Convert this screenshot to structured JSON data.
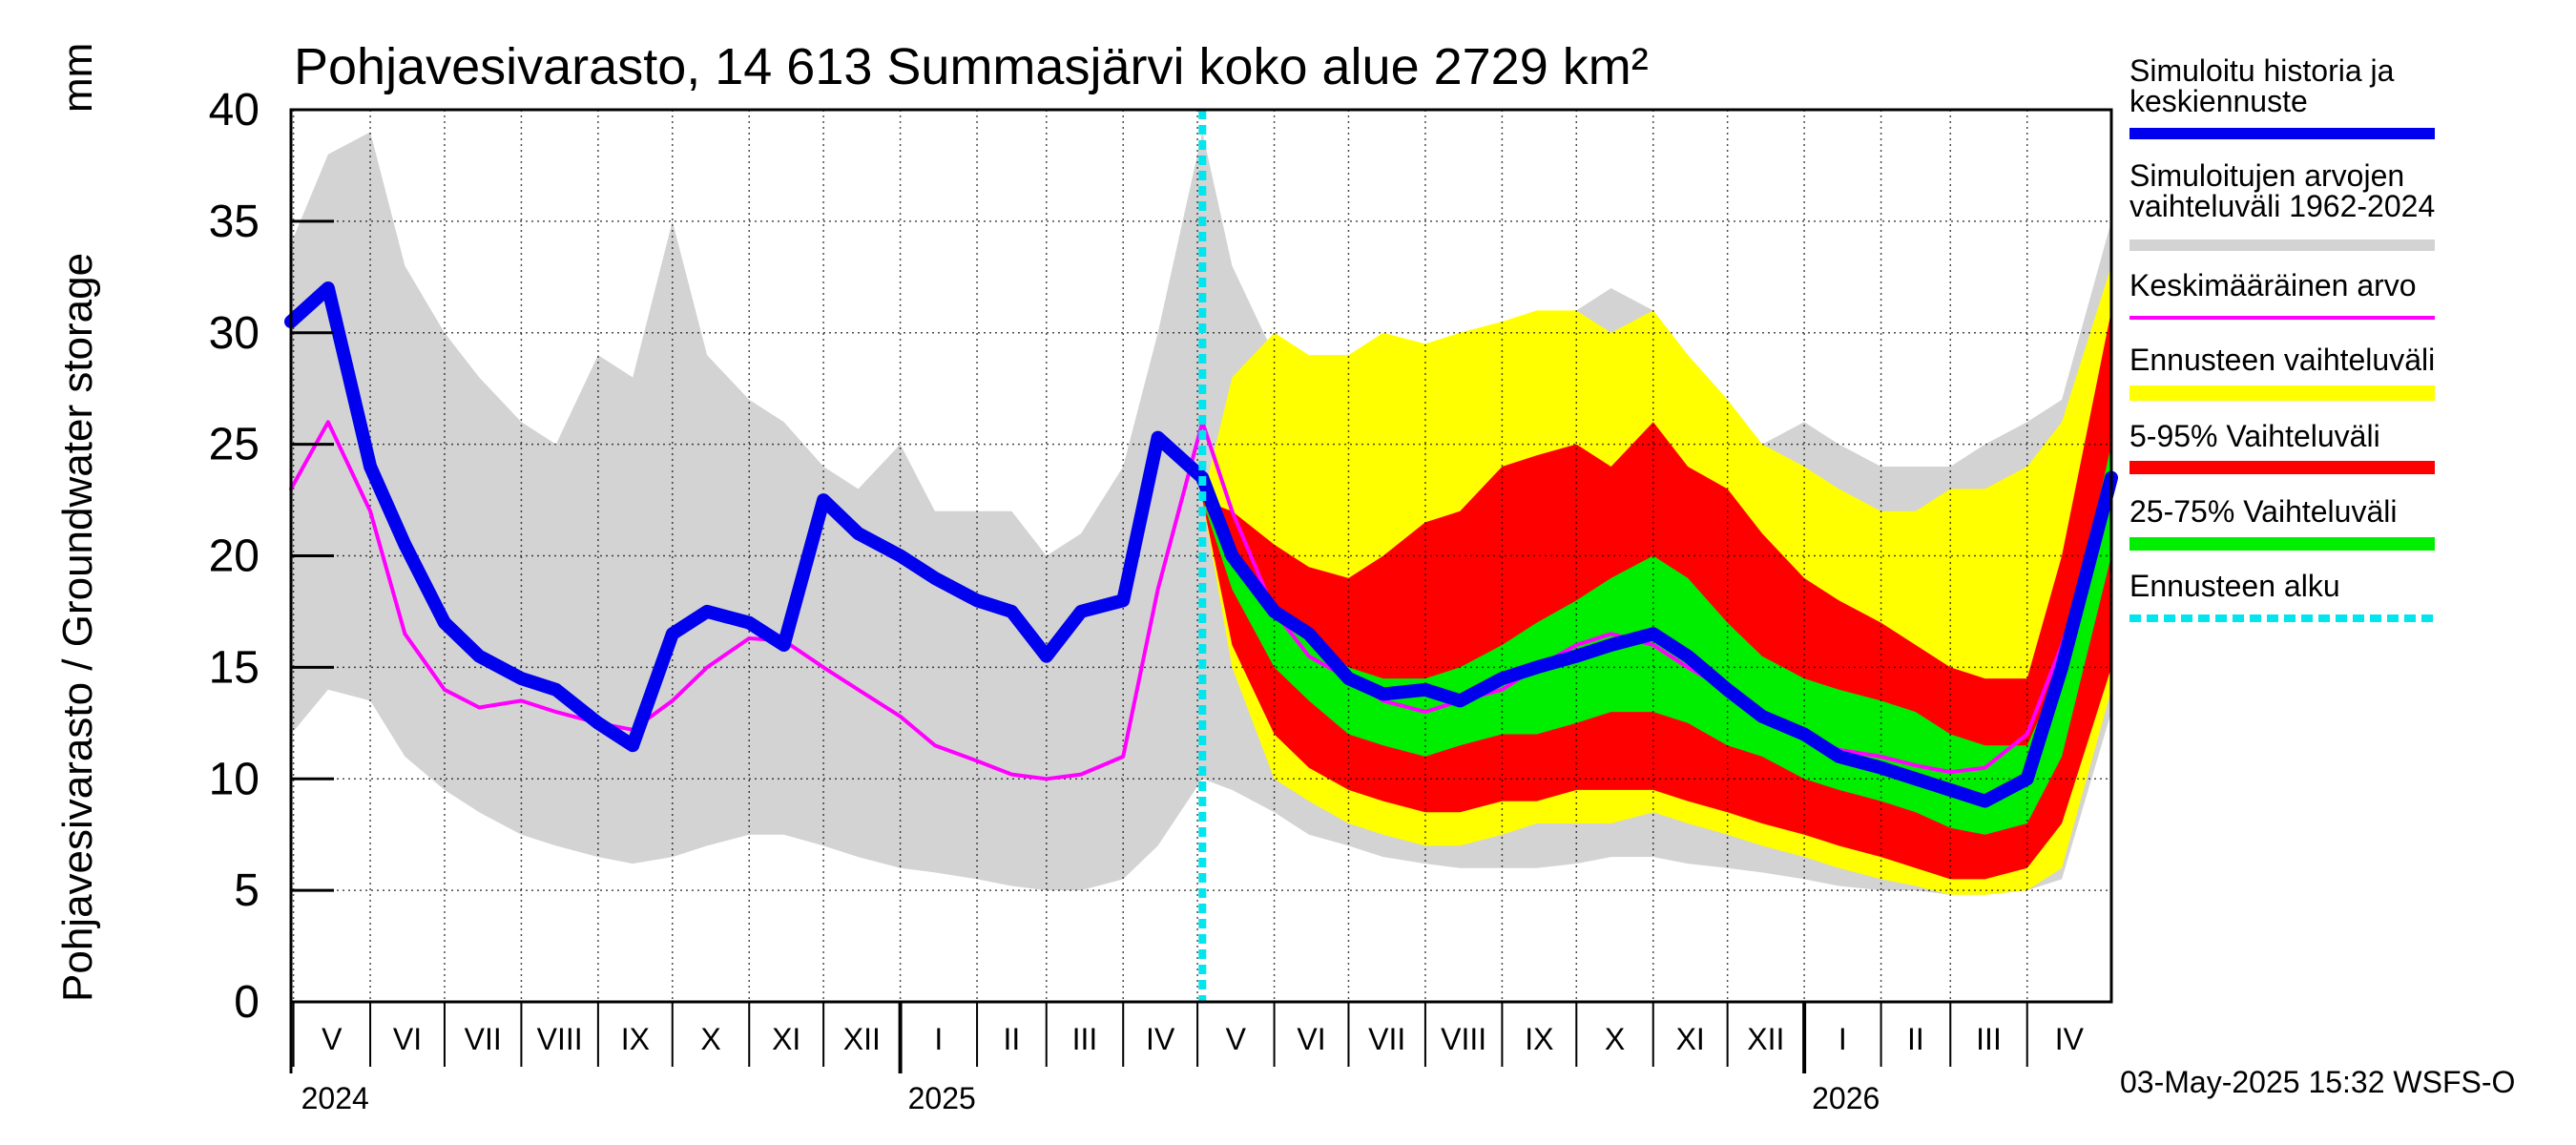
{
  "chart_data": {
    "type": "area",
    "title": "Pohjavesivarasto, 14 613 Summasjärvi koko alue 2729 km²",
    "ylabel": "Pohjavesivarasto / Groundwater storage",
    "yunit": "mm",
    "ylim": [
      0,
      40
    ],
    "yticks": [
      "0",
      "5",
      "10",
      "15",
      "20",
      "25",
      "30",
      "35",
      "40"
    ],
    "xlim": [
      "2024-04-30",
      "2026-05-05"
    ],
    "forecast_start": "2025-05-03",
    "grid": true,
    "legend_position": "right",
    "footer": "03-May-2025 15:32 WSFS-O",
    "months": [
      {
        "label": "V",
        "start": "2024-05-01"
      },
      {
        "label": "VI",
        "start": "2024-06-01"
      },
      {
        "label": "VII",
        "start": "2024-07-01"
      },
      {
        "label": "VIII",
        "start": "2024-08-01"
      },
      {
        "label": "IX",
        "start": "2024-09-01"
      },
      {
        "label": "X",
        "start": "2024-10-01"
      },
      {
        "label": "XI",
        "start": "2024-11-01"
      },
      {
        "label": "XII",
        "start": "2024-12-01"
      },
      {
        "label": "I",
        "start": "2025-01-01"
      },
      {
        "label": "II",
        "start": "2025-02-01"
      },
      {
        "label": "III",
        "start": "2025-03-01"
      },
      {
        "label": "IV",
        "start": "2025-04-01"
      },
      {
        "label": "V",
        "start": "2025-05-01"
      },
      {
        "label": "VI",
        "start": "2025-06-01"
      },
      {
        "label": "VII",
        "start": "2025-07-01"
      },
      {
        "label": "VIII",
        "start": "2025-08-01"
      },
      {
        "label": "IX",
        "start": "2025-09-01"
      },
      {
        "label": "X",
        "start": "2025-10-01"
      },
      {
        "label": "XI",
        "start": "2025-11-01"
      },
      {
        "label": "XII",
        "start": "2025-12-01"
      },
      {
        "label": "I",
        "start": "2026-01-01"
      },
      {
        "label": "II",
        "start": "2026-02-01"
      },
      {
        "label": "III",
        "start": "2026-03-01"
      },
      {
        "label": "IV",
        "start": "2026-04-01"
      }
    ],
    "years": [
      {
        "label": "2024",
        "date": "2024-05-01"
      },
      {
        "label": "2025",
        "date": "2025-01-01"
      },
      {
        "label": "2026",
        "date": "2026-01-01"
      }
    ],
    "x": [
      "2024-04-30",
      "2024-05-15",
      "2024-06-01",
      "2024-06-15",
      "2024-07-01",
      "2024-07-15",
      "2024-08-01",
      "2024-08-15",
      "2024-09-01",
      "2024-09-15",
      "2024-10-01",
      "2024-10-15",
      "2024-11-01",
      "2024-11-15",
      "2024-12-01",
      "2024-12-15",
      "2025-01-01",
      "2025-01-15",
      "2025-02-01",
      "2025-02-15",
      "2025-03-01",
      "2025-03-15",
      "2025-04-01",
      "2025-04-15",
      "2025-05-03",
      "2025-05-15",
      "2025-06-01",
      "2025-06-15",
      "2025-07-01",
      "2025-07-15",
      "2025-08-01",
      "2025-08-15",
      "2025-09-01",
      "2025-09-15",
      "2025-10-01",
      "2025-10-15",
      "2025-11-01",
      "2025-11-15",
      "2025-12-01",
      "2025-12-15",
      "2026-01-01",
      "2026-01-15",
      "2026-02-01",
      "2026-02-15",
      "2026-03-01",
      "2026-03-15",
      "2026-04-01",
      "2026-04-15",
      "2026-05-05"
    ],
    "series": [
      {
        "name": "Simuloitujen arvojen vaihteluväli 1962-2024",
        "role": "range",
        "color": "#d3d3d3",
        "lower": [
          12,
          14,
          13.5,
          11,
          9.5,
          8.5,
          7.5,
          7,
          6.5,
          6.2,
          6.5,
          7,
          7.5,
          7.5,
          7,
          6.5,
          6,
          5.8,
          5.5,
          5.2,
          5,
          5,
          5.5,
          7,
          10,
          9.5,
          8.5,
          7.5,
          7,
          6.5,
          6.2,
          6,
          6,
          6,
          6.2,
          6.5,
          6.5,
          6.2,
          6,
          5.8,
          5.5,
          5.2,
          5,
          5,
          4.8,
          4.8,
          5,
          5.5,
          13
        ],
        "upper": [
          34,
          38,
          39,
          33,
          30,
          28,
          26,
          25,
          29,
          28,
          35,
          29,
          27,
          26,
          24,
          23,
          25,
          22,
          22,
          22,
          20,
          21,
          24,
          30,
          39,
          33,
          29,
          26,
          26,
          26,
          27,
          28,
          29,
          30,
          31,
          32,
          31,
          29,
          27,
          25,
          26,
          25,
          24,
          24,
          24,
          25,
          26,
          27,
          35
        ]
      },
      {
        "name": "Ennusteen vaihteluväli",
        "role": "range",
        "color": "#ffff00",
        "lower": [
          null,
          null,
          null,
          null,
          null,
          null,
          null,
          null,
          null,
          null,
          null,
          null,
          null,
          null,
          null,
          null,
          null,
          null,
          null,
          null,
          null,
          null,
          null,
          null,
          22.5,
          15,
          10,
          9,
          8,
          7.5,
          7,
          7,
          7.5,
          8,
          8,
          8,
          8.5,
          8,
          7.5,
          7,
          6.5,
          6,
          5.5,
          5.2,
          4.8,
          4.8,
          5,
          6,
          14
        ],
        "upper": [
          null,
          null,
          null,
          null,
          null,
          null,
          null,
          null,
          null,
          null,
          null,
          null,
          null,
          null,
          null,
          null,
          null,
          null,
          null,
          null,
          null,
          null,
          null,
          null,
          22.5,
          28,
          30,
          29,
          29,
          30,
          29.5,
          30,
          30.5,
          31,
          31,
          30,
          31,
          29,
          27,
          25,
          24,
          23,
          22,
          22,
          23,
          23,
          24,
          26,
          33
        ]
      },
      {
        "name": "5-95% Vaihteluväli",
        "role": "range",
        "color": "#ff0000",
        "lower": [
          null,
          null,
          null,
          null,
          null,
          null,
          null,
          null,
          null,
          null,
          null,
          null,
          null,
          null,
          null,
          null,
          null,
          null,
          null,
          null,
          null,
          null,
          null,
          null,
          22.5,
          16,
          12,
          10.5,
          9.5,
          9,
          8.5,
          8.5,
          9,
          9,
          9.5,
          9.5,
          9.5,
          9,
          8.5,
          8,
          7.5,
          7,
          6.5,
          6,
          5.5,
          5.5,
          6,
          8,
          15
        ],
        "upper": [
          null,
          null,
          null,
          null,
          null,
          null,
          null,
          null,
          null,
          null,
          null,
          null,
          null,
          null,
          null,
          null,
          null,
          null,
          null,
          null,
          null,
          null,
          null,
          null,
          22.5,
          22,
          20.5,
          19.5,
          19,
          20,
          21.5,
          22,
          24,
          24.5,
          25,
          24,
          26,
          24,
          23,
          21,
          19,
          18,
          17,
          16,
          15,
          14.5,
          14.5,
          20,
          31
        ]
      },
      {
        "name": "25-75% Vaihteluväli",
        "role": "range",
        "color": "#00ee00",
        "lower": [
          null,
          null,
          null,
          null,
          null,
          null,
          null,
          null,
          null,
          null,
          null,
          null,
          null,
          null,
          null,
          null,
          null,
          null,
          null,
          null,
          null,
          null,
          null,
          null,
          22.5,
          18.5,
          15,
          13.5,
          12,
          11.5,
          11,
          11.5,
          12,
          12,
          12.5,
          13,
          13,
          12.5,
          11.5,
          11,
          10,
          9.5,
          9,
          8.5,
          7.8,
          7.5,
          8,
          11,
          20
        ],
        "upper": [
          null,
          null,
          null,
          null,
          null,
          null,
          null,
          null,
          null,
          null,
          null,
          null,
          null,
          null,
          null,
          null,
          null,
          null,
          null,
          null,
          null,
          null,
          null,
          null,
          22.5,
          19.5,
          17.5,
          16.5,
          15,
          14.5,
          14.5,
          15,
          16,
          17,
          18,
          19,
          20,
          19,
          17,
          15.5,
          14.5,
          14,
          13.5,
          13,
          12,
          11.5,
          11.5,
          15,
          25
        ]
      },
      {
        "name": "Keskimääräinen arvo",
        "role": "line",
        "color": "#ff00ff",
        "values": [
          23,
          26,
          22,
          16.5,
          14,
          13.2,
          13.5,
          13,
          12.5,
          12.2,
          13.5,
          15,
          16.3,
          16.2,
          15,
          14,
          12.8,
          11.5,
          10.8,
          10.2,
          10,
          10.2,
          11,
          18.5,
          26,
          22,
          17.5,
          15.5,
          14.5,
          13.5,
          13,
          13.5,
          14,
          15,
          16,
          16.5,
          16,
          15,
          14,
          13,
          12,
          11.3,
          11,
          10.6,
          10.3,
          10.5,
          12,
          16,
          23
        ]
      },
      {
        "name": "Simuloitu historia ja keskiennuste",
        "role": "line",
        "color": "#0000ee",
        "values": [
          30.5,
          32,
          24,
          20.5,
          17,
          15.5,
          14.5,
          14,
          12.5,
          11.5,
          16.5,
          17.5,
          17,
          16,
          22.5,
          21,
          20,
          19,
          18,
          17.5,
          15.5,
          17.5,
          18,
          25.3,
          23.5,
          20,
          17.5,
          16.5,
          14.5,
          13.8,
          14,
          13.5,
          14.5,
          15,
          15.5,
          16,
          16.5,
          15.5,
          14,
          12.8,
          12,
          11,
          10.5,
          10,
          9.5,
          9,
          10,
          15,
          23.5
        ]
      }
    ],
    "legend": [
      {
        "label": "Simuloitu historia ja keskiennuste",
        "color": "#0000ee"
      },
      {
        "label": "Simuloitujen arvojen vaihteluväli 1962-2024",
        "color": "#d3d3d3"
      },
      {
        "label": "Keskimääräinen arvo",
        "color": "#ff00ff"
      },
      {
        "label": "Ennusteen vaihteluväli",
        "color": "#ffff00"
      },
      {
        "label": "5-95% Vaihteluväli",
        "color": "#ff0000"
      },
      {
        "label": "25-75% Vaihteluväli",
        "color": "#00ee00"
      },
      {
        "label": "Ennusteen alku",
        "color": "#00e5ee"
      }
    ]
  }
}
